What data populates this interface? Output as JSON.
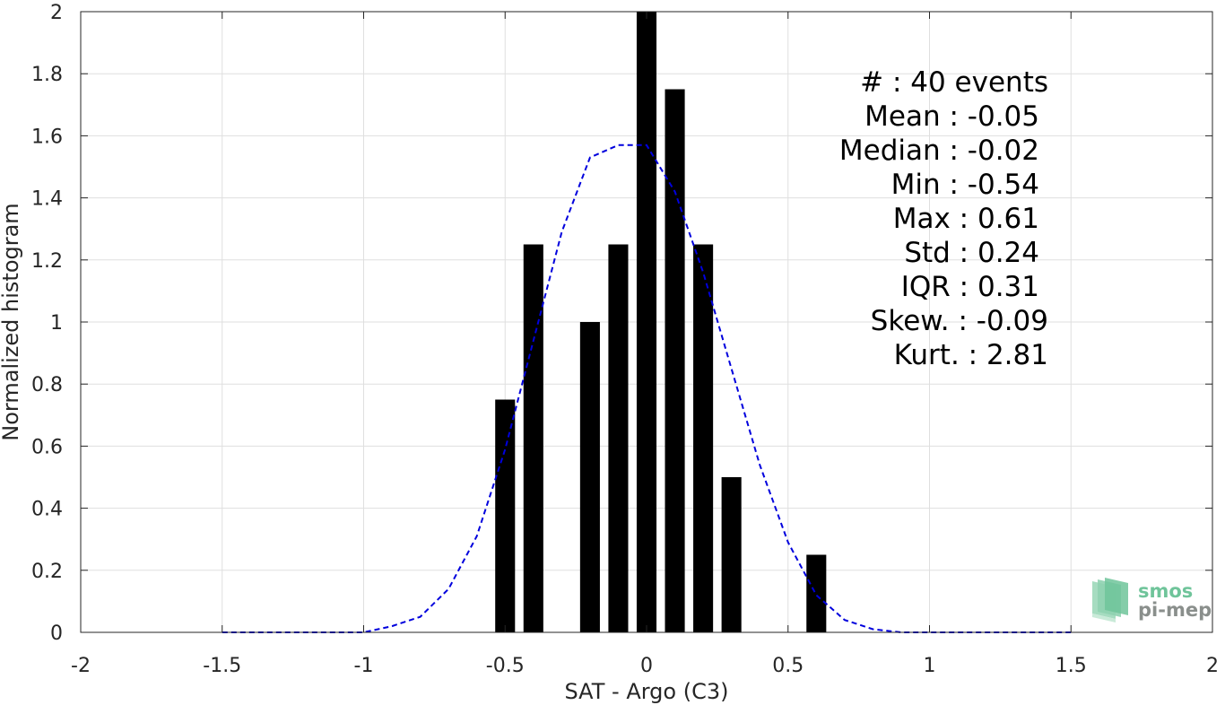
{
  "chart_data": {
    "type": "bar",
    "xlabel": "SAT - Argo (C3)",
    "ylabel": "Normalized histogram",
    "xlim": [
      -2,
      2
    ],
    "ylim": [
      0,
      2
    ],
    "x_ticks": [
      -2,
      -1.5,
      -1,
      -0.5,
      0,
      0.5,
      1,
      1.5,
      2
    ],
    "x_tick_labels": [
      "-2",
      "-1.5",
      "-1",
      "-0.5",
      "0",
      "0.5",
      "1",
      "1.5",
      "2"
    ],
    "y_ticks": [
      0,
      0.2,
      0.4,
      0.6,
      0.8,
      1,
      1.2,
      1.4,
      1.6,
      1.8,
      2
    ],
    "y_tick_labels": [
      "0",
      "0.2",
      "0.4",
      "0.6",
      "0.8",
      "1",
      "1.2",
      "1.4",
      "1.6",
      "1.8",
      "2"
    ],
    "grid": true,
    "bar_color": "#000000",
    "bar_width": 0.07,
    "bars": [
      {
        "x": -0.5,
        "value": 0.75
      },
      {
        "x": -0.4,
        "value": 1.25
      },
      {
        "x": -0.2,
        "value": 1.0
      },
      {
        "x": -0.1,
        "value": 1.25
      },
      {
        "x": 0.0,
        "value": 2.0
      },
      {
        "x": 0.1,
        "value": 1.75
      },
      {
        "x": 0.2,
        "value": 1.25
      },
      {
        "x": 0.3,
        "value": 0.5
      },
      {
        "x": 0.6,
        "value": 0.25
      }
    ],
    "curve": {
      "style": "dashed",
      "color": "#0000dd",
      "x": [
        -1.5,
        -1.0,
        -0.9,
        -0.8,
        -0.7,
        -0.6,
        -0.5,
        -0.4,
        -0.3,
        -0.2,
        -0.1,
        0.0,
        0.1,
        0.2,
        0.3,
        0.4,
        0.5,
        0.6,
        0.7,
        0.8,
        0.9,
        1.0,
        1.5
      ],
      "y": [
        0.0,
        0.0,
        0.02,
        0.05,
        0.14,
        0.31,
        0.59,
        0.94,
        1.29,
        1.53,
        1.57,
        1.57,
        1.42,
        1.16,
        0.85,
        0.54,
        0.29,
        0.12,
        0.04,
        0.01,
        0.0,
        0.0,
        0.0
      ]
    }
  },
  "stats": [
    {
      "text": "#  : 40 events",
      "anchor": "end"
    },
    {
      "text": "Mean : -0.05",
      "anchor": "end"
    },
    {
      "text": "Median : -0.02",
      "anchor": "end"
    },
    {
      "text": "Min : -0.54",
      "anchor": "end"
    },
    {
      "text": "Max : 0.61",
      "anchor": "end"
    },
    {
      "text": "Std : 0.24",
      "anchor": "end"
    },
    {
      "text": "IQR : 0.31",
      "anchor": "end"
    },
    {
      "text": "Skew. : -0.09",
      "anchor": "end"
    },
    {
      "text": "Kurt. : 2.81",
      "anchor": "end"
    }
  ],
  "logo": {
    "line1": "smos",
    "line2": "pi-mep",
    "color1": "#6fc49a",
    "color2": "#8a8f8c"
  }
}
